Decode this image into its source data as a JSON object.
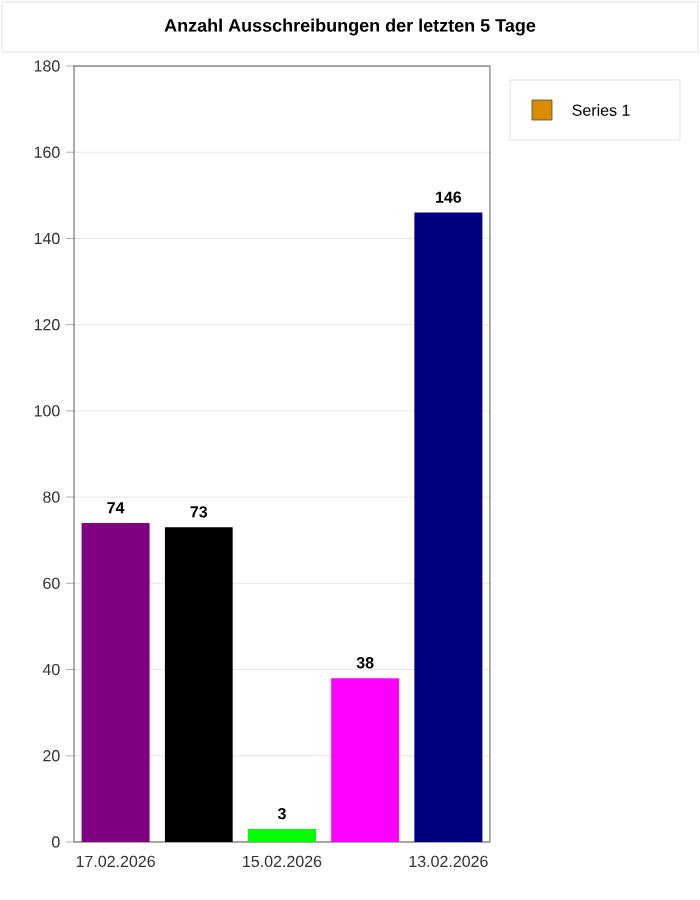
{
  "chart_data": {
    "type": "bar",
    "title": "Anzahl Ausschreibungen der letzten 5 Tage",
    "categories": [
      "17.02.2026",
      null,
      "15.02.2026",
      null,
      "13.02.2026"
    ],
    "series": [
      {
        "name": "Series 1",
        "color": "#d98c00",
        "colors": [
          "#800080",
          "#000000",
          "#00ff00",
          "#ff00ff",
          "#000080"
        ],
        "values": [
          74,
          73,
          3,
          38,
          146
        ]
      }
    ],
    "ylim": [
      0,
      180
    ],
    "yticks": [
      0,
      20,
      40,
      60,
      80,
      100,
      120,
      140,
      160,
      180
    ],
    "grid": "y",
    "data_labels": true,
    "legend": "top right"
  }
}
